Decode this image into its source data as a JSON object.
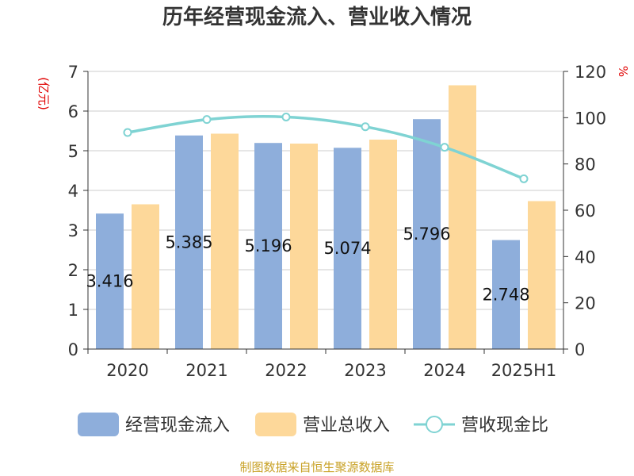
{
  "chart_data": {
    "type": "bar",
    "title": "历年经营现金流入、营业收入情况",
    "left_unit": "(亿元)",
    "right_unit": "%",
    "categories": [
      "2020",
      "2021",
      "2022",
      "2023",
      "2024",
      "2025H1"
    ],
    "ylim_left": [
      0,
      7
    ],
    "yticks_left": [
      "0",
      "1",
      "2",
      "3",
      "4",
      "5",
      "6",
      "7"
    ],
    "ylim_right": [
      0,
      120
    ],
    "yticks_right": [
      "0",
      "20",
      "40",
      "60",
      "80",
      "100",
      "120"
    ],
    "grid": true,
    "legend_position": "bottom",
    "series": [
      {
        "name": "经营现金流入",
        "type": "bar",
        "axis": "left",
        "color": "#8eaedb",
        "values": [
          3.416,
          5.385,
          5.196,
          5.074,
          5.796,
          2.748
        ],
        "labels": [
          "3.416",
          "5.385",
          "5.196",
          "5.074",
          "5.796",
          "2.748"
        ]
      },
      {
        "name": "营业总收入",
        "type": "bar",
        "axis": "left",
        "color": "#fdd89a",
        "values": [
          3.65,
          5.43,
          5.18,
          5.28,
          6.65,
          3.73
        ]
      },
      {
        "name": "营收现金比",
        "type": "line",
        "axis": "right",
        "color": "#7fd3d3",
        "values": [
          93.6,
          99.2,
          100.3,
          96.1,
          87.2,
          73.6
        ]
      }
    ]
  },
  "source_text": "制图数据来自恒生聚源数据库"
}
